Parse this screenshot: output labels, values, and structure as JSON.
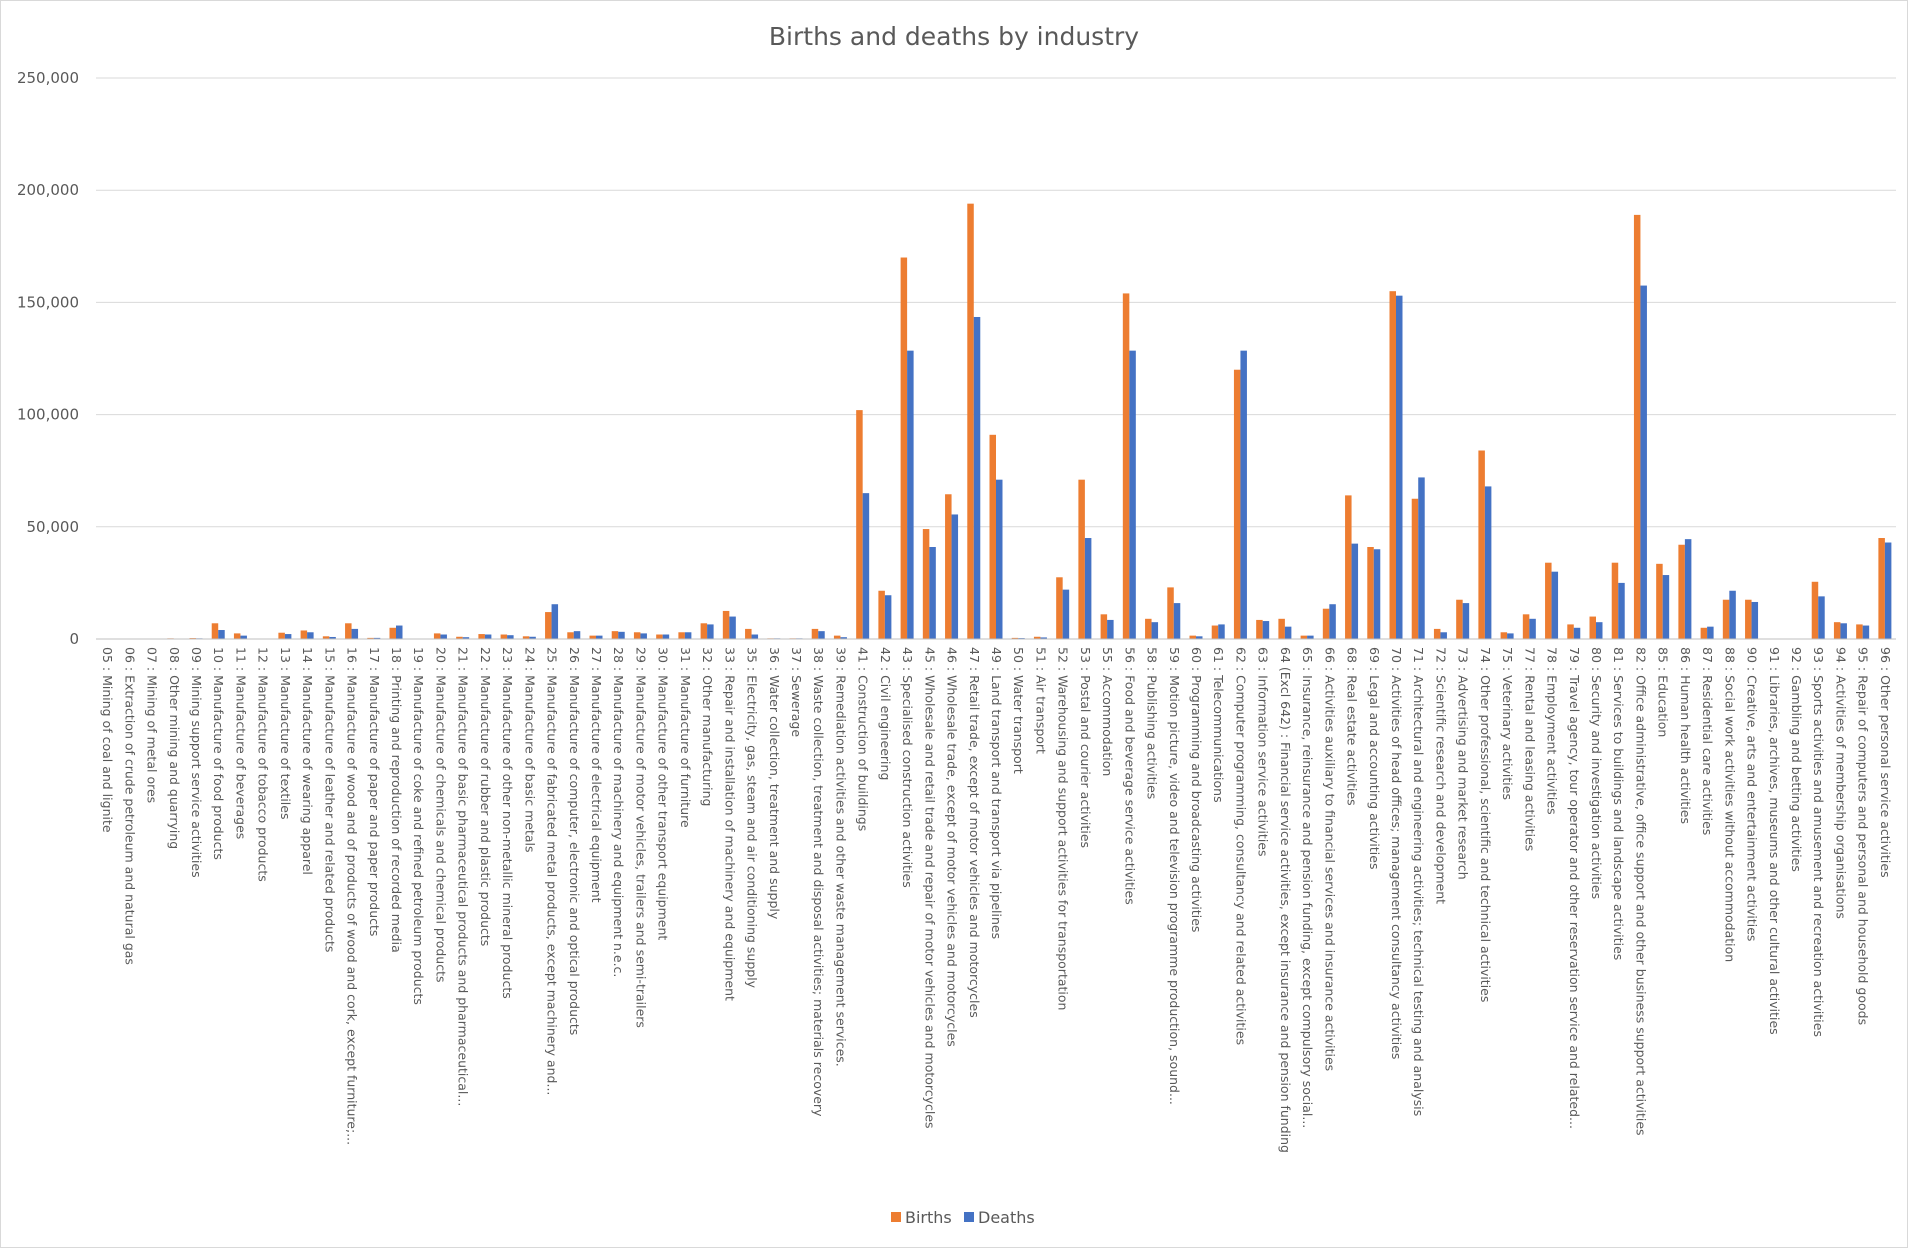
{
  "chart_data": {
    "type": "bar",
    "title": "Births and deaths by industry",
    "xlabel": "",
    "ylabel": "",
    "ylim": [
      0,
      250000
    ],
    "yticks": [
      0,
      50000,
      100000,
      150000,
      200000,
      250000
    ],
    "ytick_labels": [
      "0",
      "50,000",
      "100,000",
      "150,000",
      "200,000",
      "250,000"
    ],
    "grid": true,
    "legend_position": "bottom",
    "colors": {
      "Births": "#ed7d31",
      "Deaths": "#4472c4"
    },
    "categories": [
      "05 : Mining of coal and lignite",
      "06 : Extraction of crude petroleum and natural gas",
      "07 : Mining of metal ores",
      "08 : Other mining and quarrying",
      "09 : Mining support service activities",
      "10 : Manufacture of food products",
      "11 : Manufacture of beverages",
      "12 : Manufacture of tobacco products",
      "13 : Manufacture of textiles",
      "14 : Manufacture of wearing apparel",
      "15 : Manufacture of leather and related products",
      "16 : Manufacture of wood and of products of wood and cork, except furniture;...",
      "17 : Manufacture of paper and paper products",
      "18 : Printing and reproduction of recorded media",
      "19 : Manufacture of coke and refined petroleum products",
      "20 : Manufacture of chemicals and chemical products",
      "21 : Manufacture of basic pharmaceutical products and pharmaceutical...",
      "22 : Manufacture of rubber and plastic products",
      "23 : Manufacture of other non-metallic mineral products",
      "24 : Manufacture of basic metals",
      "25 : Manufacture of fabricated metal products, except machinery and...",
      "26 : Manufacture of computer, electronic and optical products",
      "27 : Manufacture of electrical equipment",
      "28 : Manufacture of machinery and equipment n.e.c.",
      "29 : Manufacture of motor vehicles, trailers and semi-trailers",
      "30 : Manufacture of other transport equipment",
      "31 : Manufacture of furniture",
      "32 : Other manufacturing",
      "33 : Repair and installation of machinery and equipment",
      "35 : Electricity, gas, steam and air conditioning supply",
      "36 : Water collection, treatment and supply",
      "37 : Sewerage",
      "38 : Waste collection, treatment and disposal activities; materials recovery",
      "39 : Remediation activities and other waste management services.",
      "41 : Construction of buildings",
      "42 : Civil engineering",
      "43 : Specialised construction activities",
      "45 : Wholesale and retail trade and repair of motor vehicles and motorcycles",
      "46 : Wholesale trade, except of motor vehicles and motorcycles",
      "47 : Retail trade, except of motor vehicles and motorcycles",
      "49 : Land transport and transport via pipelines",
      "50 : Water transport",
      "51 : Air transport",
      "52 : Warehousing and support activities for transportation",
      "53 : Postal and courier activities",
      "55 : Accommodation",
      "56 : Food and beverage service activities",
      "58 : Publishing activities",
      "59 : Motion picture, video and television programme production, sound...",
      "60 : Programming and broadcasting activities",
      "61 : Telecommunications",
      "62 : Computer programming, consultancy and related activities",
      "63 : Information service activities",
      "64 (Excl 642) : Financial service activities, except insurance and pension funding",
      "65 : Insurance, reinsurance and pension funding, except compulsory social...",
      "66 : Activities auxiliary to financial services and insurance activities",
      "68 : Real estate activities",
      "69 : Legal and accounting activities",
      "70 : Activities of head offices; management consultancy activities",
      "71 : Architectural and engineering activities; technical testing and analysis",
      "72 : Scientific research and development",
      "73 : Advertising and market research",
      "74 : Other professional, scientific and technical activities",
      "75 : Veterinary activities",
      "77 : Rental and leasing activities",
      "78 : Employment activities",
      "79 : Travel agency, tour operator and other reservation service and related...",
      "80 : Security and investigation activities",
      "81 : Services to buildings and landscape activities",
      "82 : Office administrative, office support and other business support activities",
      "85 : Education",
      "86 : Human health activities",
      "87 : Residential care activities",
      "88 : Social work activities without accommodation",
      "90 : Creative, arts and entertainment activities",
      "91 : Libraries, archives, museums and other cultural activities",
      "92 : Gambling and betting activities",
      "93 : Sports activities and amusement and recreation activities",
      "94 : Activities of membership organisations",
      "95 : Repair of computers and personal and household goods",
      "96 : Other personal service activities"
    ],
    "series": [
      {
        "name": "Births",
        "values": [
          100,
          100,
          50,
          300,
          400,
          7000,
          2500,
          50,
          2800,
          3800,
          1200,
          7000,
          500,
          5000,
          100,
          2500,
          1000,
          2200,
          2000,
          1200,
          12000,
          3000,
          1500,
          3500,
          3000,
          2000,
          3000,
          7000,
          12500,
          4500,
          300,
          300,
          4500,
          1500,
          102000,
          21500,
          170000,
          49000,
          64500,
          194000,
          91000,
          500,
          1000,
          27500,
          71000,
          11000,
          154000,
          9000,
          23000,
          1500,
          6000,
          120000,
          8500,
          9000,
          1500,
          13500,
          64000,
          41000,
          155000,
          62500,
          4500,
          17500,
          84000,
          3000,
          11000,
          34000,
          6500,
          10000,
          34000,
          189000,
          33500,
          42000,
          5000,
          17500,
          17500,
          200,
          200,
          25500,
          7500,
          6500,
          45000
        ]
      },
      {
        "name": "Deaths",
        "values": [
          100,
          100,
          50,
          200,
          300,
          4000,
          1500,
          50,
          2200,
          3000,
          900,
          4500,
          500,
          6000,
          200,
          2000,
          800,
          2000,
          1700,
          1000,
          15500,
          3500,
          1500,
          3200,
          2500,
          2000,
          3000,
          6500,
          10000,
          2000,
          300,
          300,
          3500,
          800,
          65000,
          19500,
          128500,
          41000,
          55500,
          143500,
          71000,
          400,
          700,
          22000,
          45000,
          8500,
          128500,
          7500,
          16000,
          1200,
          6500,
          128500,
          8000,
          5500,
          1500,
          15500,
          42500,
          40000,
          153000,
          72000,
          3000,
          16000,
          68000,
          2500,
          9000,
          30000,
          5000,
          7500,
          25000,
          157500,
          28500,
          44500,
          5500,
          21500,
          16500,
          200,
          200,
          19000,
          7000,
          6000,
          43000
        ]
      }
    ]
  }
}
